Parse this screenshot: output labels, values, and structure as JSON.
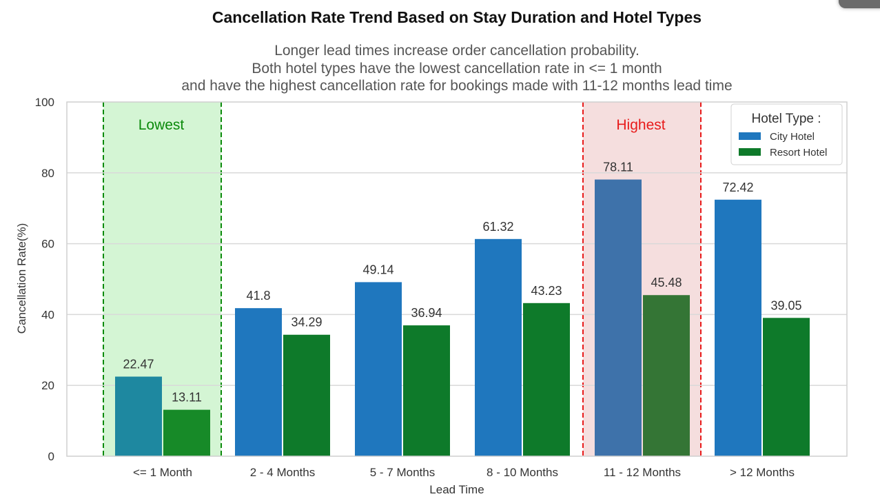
{
  "chart_data": {
    "type": "bar",
    "title": "Cancellation Rate Trend Based on Stay Duration and Hotel Types",
    "subtitle": [
      "Longer lead times increase order cancellation probability.",
      "Both hotel types have the lowest cancellation rate in <= 1 month",
      "and have the highest cancellation rate for bookings made with 11-12 months lead time"
    ],
    "xlabel": "Lead Time",
    "ylabel": "Cancellation Rate(%)",
    "ylim": [
      0,
      100
    ],
    "yticks": [
      "0",
      "20",
      "40",
      "60",
      "80",
      "100"
    ],
    "categories": [
      "<= 1 Month",
      "2 - 4 Months",
      "5 - 7 Months",
      "8 - 10 Months",
      "11 - 12 Months",
      "> 12 Months"
    ],
    "series": [
      {
        "name": "City Hotel",
        "values": [
          22.47,
          41.8,
          49.14,
          61.32,
          78.11,
          72.42
        ],
        "labels": [
          "22.47",
          "41.8",
          "49.14",
          "61.32",
          "78.11",
          "72.42"
        ],
        "color": "#1f77be"
      },
      {
        "name": "Resort Hotel",
        "values": [
          13.11,
          34.29,
          36.94,
          43.23,
          45.48,
          39.05
        ],
        "labels": [
          "13.11",
          "34.29",
          "36.94",
          "43.23",
          "45.48",
          "39.05"
        ],
        "color": "#0e7a2a"
      }
    ],
    "legend": {
      "title": "Hotel Type :",
      "position": "top-right"
    },
    "grid": true,
    "highlights": [
      {
        "label": "Lowest",
        "category_index": 0,
        "fill": "#d4f5d4",
        "line_color": "#0a8a0a",
        "text_color": "#0a8a0a"
      },
      {
        "label": "Highest",
        "category_index": 4,
        "fill": "#f5dede",
        "line_color": "#e81a1a",
        "text_color": "#e81a1a"
      }
    ]
  }
}
